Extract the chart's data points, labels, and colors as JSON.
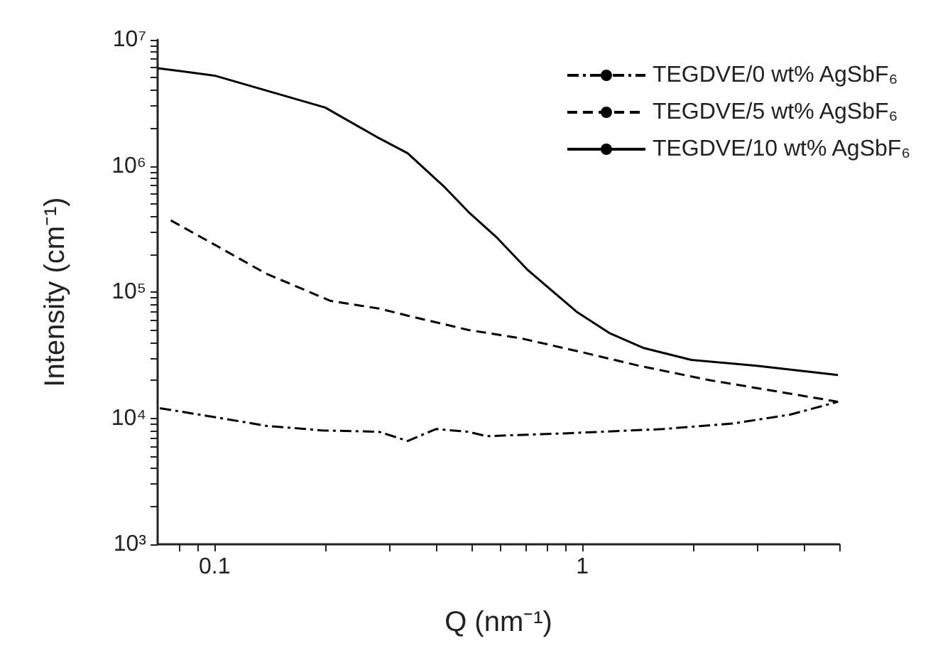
{
  "chart_data": {
    "type": "line",
    "xlabel": "Q (nm⁻¹)",
    "ylabel": "Intensity (cm⁻¹)",
    "log": "xy",
    "legend": "top right",
    "grid": false,
    "marker": "none",
    "xlim": [
      0.07,
      5
    ],
    "ylim": [
      1000,
      10000000
    ],
    "xticks": [
      {
        "value": 0.08,
        "label": null
      },
      {
        "value": 0.09,
        "label": null
      },
      0.1,
      {
        "value": 0.2,
        "label": null
      },
      {
        "value": 0.3,
        "label": null
      },
      {
        "value": 0.4,
        "label": null
      },
      {
        "value": 0.5,
        "label": null
      },
      {
        "value": 0.6,
        "label": null
      },
      {
        "value": 0.7,
        "label": null
      },
      {
        "value": 0.8,
        "label": null
      },
      {
        "value": 0.9,
        "label": null
      },
      1,
      {
        "value": 2,
        "label": null
      },
      {
        "value": 3,
        "label": null
      },
      {
        "value": 4,
        "label": null
      },
      {
        "value": 5,
        "label": null
      }
    ],
    "yticks": [
      {
        "value": 1000,
        "label": "10³"
      },
      {
        "value": 2000,
        "label": null
      },
      {
        "value": 3000,
        "label": null
      },
      {
        "value": 4000,
        "label": null
      },
      {
        "value": 5000,
        "label": null
      },
      {
        "value": 6000,
        "label": null
      },
      {
        "value": 7000,
        "label": null
      },
      {
        "value": 8000,
        "label": null
      },
      {
        "value": 9000,
        "label": null
      },
      {
        "value": 10000,
        "label": "10⁴"
      },
      {
        "value": 20000,
        "label": null
      },
      {
        "value": 30000,
        "label": null
      },
      {
        "value": 40000,
        "label": null
      },
      {
        "value": 50000,
        "label": null
      },
      {
        "value": 60000,
        "label": null
      },
      {
        "value": 70000,
        "label": null
      },
      {
        "value": 80000,
        "label": null
      },
      {
        "value": 90000,
        "label": null
      },
      {
        "value": 100000,
        "label": "10⁵"
      },
      {
        "value": 200000,
        "label": null
      },
      {
        "value": 300000,
        "label": null
      },
      {
        "value": 400000,
        "label": null
      },
      {
        "value": 500000,
        "label": null
      },
      {
        "value": 600000,
        "label": null
      },
      {
        "value": 700000,
        "label": null
      },
      {
        "value": 800000,
        "label": null
      },
      {
        "value": 900000,
        "label": null
      },
      {
        "value": 1000000,
        "label": "10⁶"
      },
      {
        "value": 2000000,
        "label": null
      },
      {
        "value": 3000000,
        "label": null
      },
      {
        "value": 4000000,
        "label": null
      },
      {
        "value": 5000000,
        "label": null
      },
      {
        "value": 6000000,
        "label": null
      },
      {
        "value": 7000000,
        "label": null
      },
      {
        "value": 8000000,
        "label": null
      },
      {
        "value": 9000000,
        "label": null
      },
      {
        "value": 10000000,
        "label": "10⁷"
      }
    ],
    "series": [
      {
        "name": "TEGDVE/0 wt% AgSbF₆",
        "color": "#000000",
        "line_style": "dashdot",
        "x": [
          0.071,
          0.1,
          0.138,
          0.196,
          0.28,
          0.335,
          0.4,
          0.49,
          0.55,
          0.915,
          1.66,
          2.59,
          3.69,
          4.96
        ],
        "values": [
          12000,
          10200,
          8700,
          8000,
          7800,
          6600,
          8200,
          7800,
          7200,
          7600,
          8200,
          9100,
          10700,
          13500
        ]
      },
      {
        "name": "TEGDVE/5 wt% AgSbF₆",
        "color": "#000000",
        "line_style": "dashed",
        "x": [
          0.076,
          0.102,
          0.138,
          0.207,
          0.28,
          0.335,
          0.491,
          0.68,
          0.97,
          1.43,
          2.22,
          3.26,
          4.96
        ],
        "values": [
          370000,
          230000,
          140000,
          85000,
          74000,
          65000,
          50000,
          43000,
          34000,
          26000,
          20000,
          16600,
          13500
        ]
      },
      {
        "name": "TEGDVE/10 wt% AgSbF₆",
        "color": "#000000",
        "line_style": "solid",
        "x": [
          0.07,
          0.1,
          0.2,
          0.28,
          0.335,
          0.422,
          0.491,
          0.586,
          0.71,
          0.97,
          1.19,
          1.47,
          1.98,
          2.98,
          4.96
        ],
        "values": [
          5960000,
          5200000,
          2900000,
          1660000,
          1260000,
          680000,
          430000,
          270000,
          150000,
          69000,
          47000,
          36000,
          29000,
          26000,
          22000
        ]
      }
    ]
  }
}
